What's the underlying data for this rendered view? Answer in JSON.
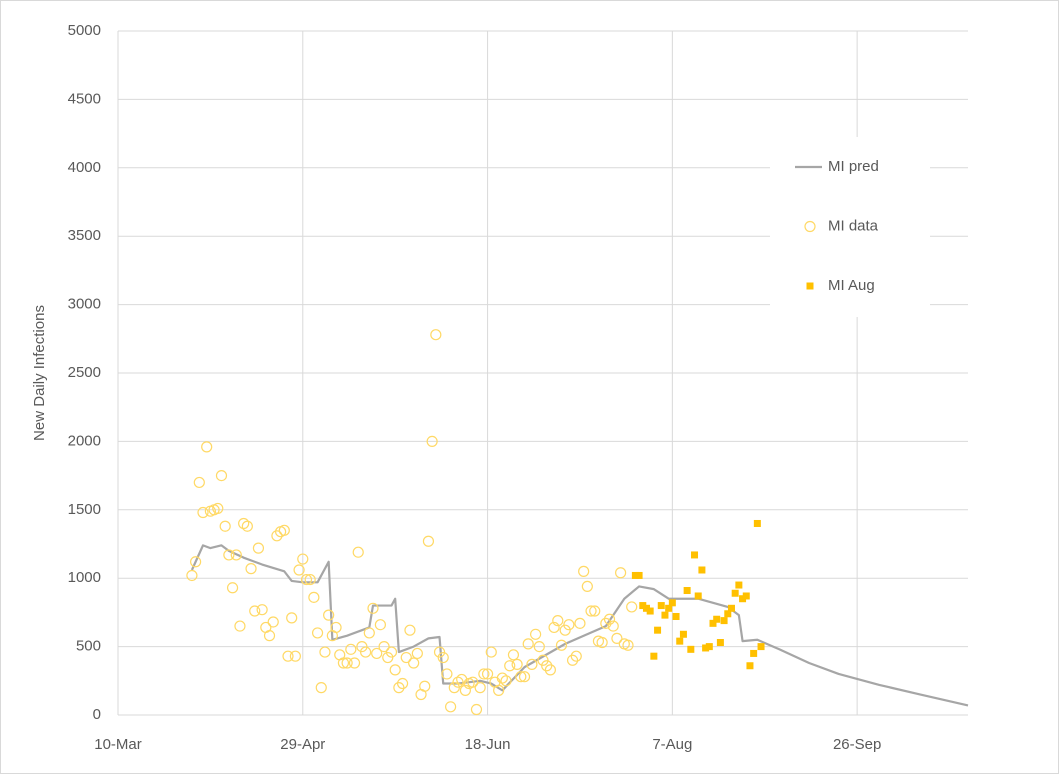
{
  "chart_data": {
    "type": "scatter",
    "ylabel": "New Daily Infections",
    "xlim": [
      70,
      300
    ],
    "ylim": [
      0,
      5000
    ],
    "xticks": [
      {
        "value": 70,
        "label": "10-Mar"
      },
      {
        "value": 120,
        "label": "29-Apr"
      },
      {
        "value": 170,
        "label": "18-Jun"
      },
      {
        "value": 220,
        "label": "7-Aug"
      },
      {
        "value": 270,
        "label": "26-Sep"
      }
    ],
    "yticks": [
      0,
      500,
      1000,
      1500,
      2000,
      2500,
      3000,
      3500,
      4000,
      4500,
      5000
    ],
    "grid": true,
    "legend": "right",
    "series": [
      {
        "name": "MI pred",
        "type": "line",
        "color": "#a6a6a6",
        "x": [
          90,
          93,
          95,
          98,
          100,
          104,
          109,
          115,
          117,
          120,
          124,
          127,
          128,
          132,
          136,
          138,
          139,
          144,
          145,
          146,
          150,
          154,
          157,
          158,
          162,
          168,
          171,
          174,
          180,
          191,
          202,
          207,
          211,
          215,
          219,
          227,
          235,
          238,
          239,
          243,
          249,
          257,
          265,
          276,
          287,
          300
        ],
        "values": [
          1060,
          1240,
          1220,
          1240,
          1200,
          1150,
          1100,
          1050,
          980,
          970,
          970,
          1120,
          550,
          580,
          620,
          640,
          800,
          800,
          850,
          460,
          500,
          560,
          570,
          230,
          230,
          250,
          230,
          180,
          350,
          520,
          650,
          850,
          940,
          920,
          850,
          850,
          790,
          730,
          540,
          550,
          480,
          380,
          300,
          220,
          150,
          70
        ]
      },
      {
        "name": "MI data",
        "type": "scatter",
        "marker": "circle-open",
        "color": "#ffd966",
        "x": [
          90,
          91,
          92,
          93,
          94,
          95,
          96,
          97,
          98,
          99,
          100,
          101,
          102,
          103,
          104,
          105,
          106,
          107,
          108,
          109,
          110,
          111,
          112,
          113,
          114,
          115,
          116,
          117,
          118,
          119,
          120,
          121,
          122,
          123,
          124,
          125,
          126,
          127,
          128,
          129,
          130,
          131,
          132,
          133,
          134,
          135,
          136,
          137,
          138,
          139,
          140,
          141,
          142,
          143,
          144,
          145,
          146,
          147,
          148,
          149,
          150,
          151,
          152,
          153,
          154,
          155,
          156,
          157,
          158,
          159,
          160,
          161,
          162,
          163,
          164,
          165,
          166,
          167,
          168,
          169,
          170,
          171,
          172,
          173,
          174,
          175,
          176,
          177,
          178,
          179,
          180,
          181,
          182,
          183,
          184,
          185,
          186,
          187,
          188,
          189,
          190,
          191,
          192,
          193,
          194,
          195,
          196,
          197,
          198,
          199,
          200,
          201,
          202,
          203,
          204,
          205,
          206,
          207,
          208,
          209
        ],
        "values": [
          1020,
          1120,
          1700,
          1480,
          1960,
          1490,
          1500,
          1510,
          1750,
          1380,
          1170,
          930,
          1170,
          650,
          1400,
          1380,
          1070,
          760,
          1220,
          770,
          640,
          580,
          680,
          1310,
          1340,
          1350,
          430,
          710,
          430,
          1060,
          1140,
          990,
          990,
          860,
          600,
          200,
          460,
          730,
          580,
          640,
          440,
          380,
          380,
          480,
          380,
          1190,
          500,
          460,
          600,
          780,
          450,
          660,
          500,
          420,
          460,
          330,
          200,
          230,
          420,
          620,
          380,
          450,
          150,
          210,
          1270,
          2000,
          2780,
          460,
          420,
          300,
          60,
          200,
          240,
          260,
          180,
          230,
          240,
          40,
          200,
          300,
          300,
          460,
          240,
          180,
          270,
          250,
          360,
          440,
          370,
          280,
          280,
          520,
          370,
          590,
          500,
          400,
          360,
          330,
          640,
          690,
          510,
          620,
          660,
          400,
          430,
          670,
          1050,
          940,
          760,
          760,
          540,
          530,
          670,
          700,
          650,
          560,
          1040,
          520,
          510,
          790
        ]
      },
      {
        "name": "MI Aug",
        "type": "scatter",
        "marker": "square",
        "color": "#ffc000",
        "x": [
          210,
          211,
          212,
          213,
          214,
          215,
          216,
          217,
          218,
          219,
          220,
          221,
          222,
          223,
          224,
          225,
          226,
          227,
          228,
          229,
          230,
          231,
          232,
          233,
          234,
          235,
          236,
          237,
          238,
          239,
          240,
          241,
          242,
          243,
          244
        ],
        "values": [
          1020,
          1020,
          800,
          780,
          760,
          430,
          620,
          800,
          730,
          780,
          820,
          720,
          540,
          590,
          910,
          480,
          1170,
          870,
          1060,
          490,
          500,
          670,
          700,
          530,
          690,
          740,
          780,
          890,
          950,
          850,
          870,
          360,
          450,
          1400,
          500
        ]
      }
    ]
  }
}
